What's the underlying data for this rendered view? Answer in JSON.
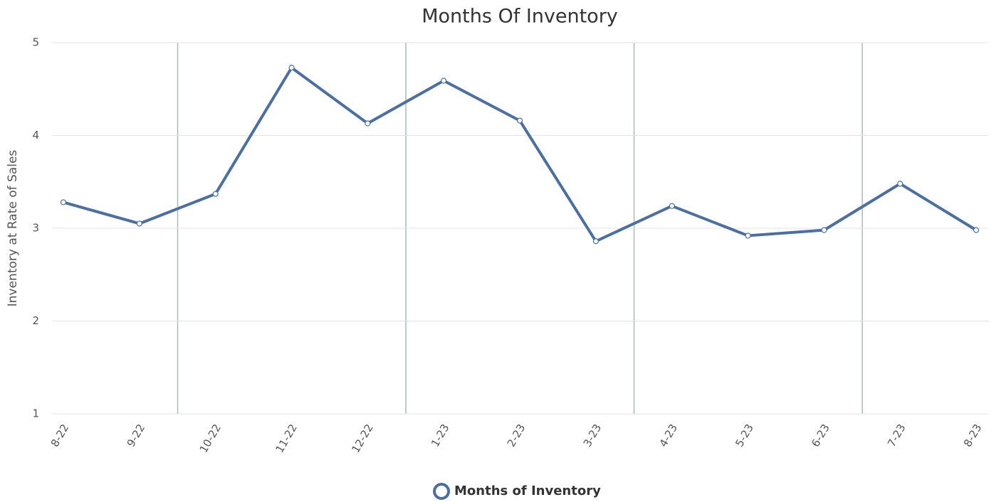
{
  "chart_data": {
    "type": "line",
    "title": "Months Of Inventory",
    "y_label": "Inventory at Rate of Sales",
    "categories": [
      "8-22",
      "9-22",
      "10-22",
      "11-22",
      "12-22",
      "1-23",
      "2-23",
      "3-23",
      "4-23",
      "5-23",
      "6-23",
      "7-23",
      "8-23"
    ],
    "series": [
      {
        "name": "Months of Inventory",
        "color": "#4a6fa5",
        "values": [
          3.28,
          3.05,
          3.37,
          4.73,
          4.13,
          4.59,
          4.16,
          2.86,
          3.24,
          2.92,
          2.98,
          3.48,
          2.98
        ]
      }
    ],
    "ylim": [
      1,
      5
    ],
    "yticks": [
      1,
      2,
      3,
      4,
      5
    ],
    "grid": true,
    "legend": "bottom"
  }
}
